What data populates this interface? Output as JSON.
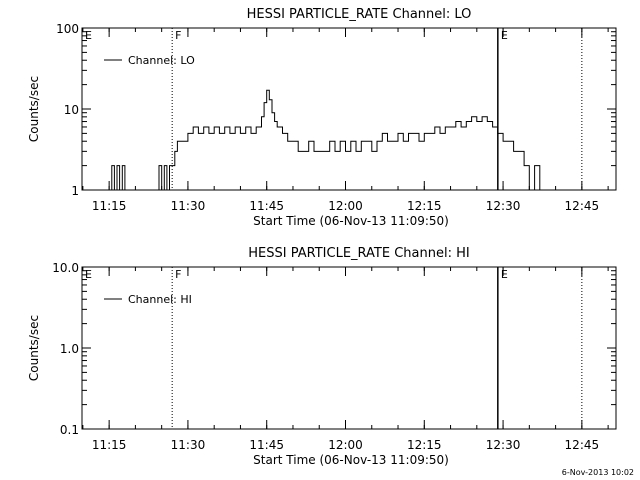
{
  "footer_timestamp": "6-Nov-2013 10:02",
  "chart_data": [
    {
      "type": "line",
      "title": "HESSI PARTICLE_RATE Channel: LO",
      "xlabel": "Start Time (06-Nov-13 11:09:50)",
      "ylabel": "Counts/sec",
      "yscale": "log",
      "ylim": [
        1,
        100
      ],
      "xlim": [
        "11:09:50",
        "12:51:30"
      ],
      "x_ticks": [
        "11:15",
        "11:30",
        "11:45",
        "12:00",
        "12:15",
        "12:30",
        "12:45"
      ],
      "y_ticks": [
        "1",
        "10",
        "100"
      ],
      "legend": [
        "Channel: LO"
      ],
      "markers": [
        {
          "label": "E",
          "time": "11:09:50",
          "style": "none"
        },
        {
          "label": "F",
          "time": "11:27:00",
          "style": "dotted"
        },
        {
          "label": "E",
          "time": "12:29:00",
          "style": "solid"
        },
        {
          "label": "",
          "time": "12:45:00",
          "style": "dotted"
        }
      ],
      "series": [
        {
          "name": "Channel: LO",
          "x": [
            "11:15:00",
            "11:15:30",
            "11:16:00",
            "11:16:30",
            "11:17:00",
            "11:17:30",
            "11:18:00",
            "11:24:00",
            "11:24:30",
            "11:25:00",
            "11:25:30",
            "11:26:00",
            "11:26:30",
            "11:27:00",
            "11:27:30",
            "11:28:00",
            "11:29:00",
            "11:30:00",
            "11:31:00",
            "11:32:00",
            "11:33:00",
            "11:34:00",
            "11:35:00",
            "11:36:00",
            "11:37:00",
            "11:38:00",
            "11:39:00",
            "11:40:00",
            "11:41:00",
            "11:42:00",
            "11:43:00",
            "11:44:00",
            "11:44:30",
            "11:45:00",
            "11:45:30",
            "11:46:00",
            "11:46:30",
            "11:47:00",
            "11:48:00",
            "11:49:00",
            "11:50:00",
            "11:51:00",
            "11:52:00",
            "11:53:00",
            "11:54:00",
            "11:55:00",
            "11:56:00",
            "11:57:00",
            "11:58:00",
            "11:59:00",
            "12:00:00",
            "12:01:00",
            "12:02:00",
            "12:03:00",
            "12:04:00",
            "12:05:00",
            "12:06:00",
            "12:07:00",
            "12:08:00",
            "12:09:00",
            "12:10:00",
            "12:11:00",
            "12:12:00",
            "12:13:00",
            "12:14:00",
            "12:15:00",
            "12:16:00",
            "12:17:00",
            "12:18:00",
            "12:19:00",
            "12:20:00",
            "12:21:00",
            "12:22:00",
            "12:23:00",
            "12:24:00",
            "12:25:00",
            "12:26:00",
            "12:27:00",
            "12:28:00",
            "12:29:00",
            "12:30:00",
            "12:31:00",
            "12:32:00",
            "12:33:00",
            "12:34:00",
            "12:35:00",
            "12:36:00",
            "12:37:00"
          ],
          "y": [
            1,
            2,
            1,
            2,
            1,
            2,
            1,
            1,
            2,
            1,
            2,
            1,
            2,
            2,
            3,
            4,
            4,
            5,
            6,
            5,
            6,
            5,
            6,
            5,
            6,
            5,
            6,
            5,
            6,
            5,
            6,
            8,
            12,
            17,
            13,
            9,
            7,
            6,
            5,
            4,
            4,
            3,
            3,
            4,
            3,
            3,
            3,
            4,
            3,
            4,
            3,
            4,
            3,
            4,
            4,
            3,
            4,
            5,
            4,
            4,
            5,
            4,
            5,
            5,
            4,
            5,
            5,
            6,
            5,
            6,
            6,
            7,
            6,
            7,
            8,
            7,
            8,
            7,
            6,
            5,
            4,
            4,
            3,
            3,
            2,
            1,
            2,
            1
          ]
        }
      ]
    },
    {
      "type": "line",
      "title": "HESSI PARTICLE_RATE Channel: HI",
      "xlabel": "Start Time (06-Nov-13 11:09:50)",
      "ylabel": "Counts/sec",
      "yscale": "log",
      "ylim": [
        0.1,
        10
      ],
      "xlim": [
        "11:09:50",
        "12:51:30"
      ],
      "x_ticks": [
        "11:15",
        "11:30",
        "11:45",
        "12:00",
        "12:15",
        "12:30",
        "12:45"
      ],
      "y_ticks": [
        "0.1",
        "1.0",
        "10.0"
      ],
      "legend": [
        "Channel: HI"
      ],
      "markers": [
        {
          "label": "E",
          "time": "11:09:50",
          "style": "none"
        },
        {
          "label": "F",
          "time": "11:27:00",
          "style": "dotted"
        },
        {
          "label": "E",
          "time": "12:29:00",
          "style": "solid"
        },
        {
          "label": "",
          "time": "12:45:00",
          "style": "dotted"
        }
      ],
      "series": [
        {
          "name": "Channel: HI",
          "x": [],
          "y": []
        }
      ]
    }
  ]
}
